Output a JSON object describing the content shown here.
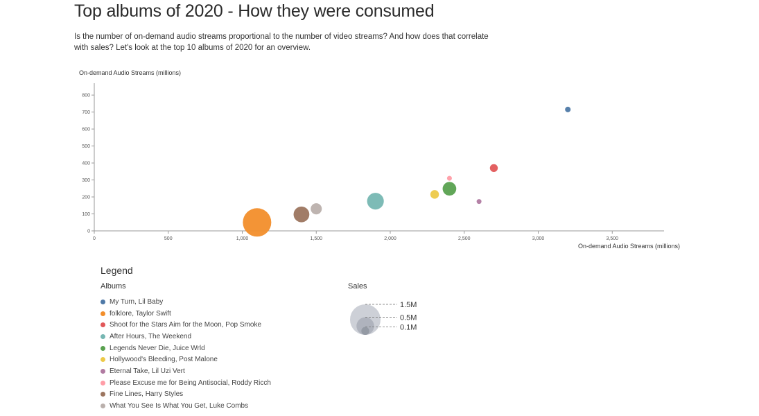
{
  "title": "Top albums of 2020 - How they were consumed",
  "subtitle": "Is the number of on-demand audio streams proportional to the number of video streams? And how does that correlate with sales? Let's look at the top 10 albums of 2020 for an overview.",
  "legend": {
    "title": "Legend",
    "albums_label": "Albums",
    "sales_label": "Sales",
    "sales_items": [
      {
        "label": "1.5M",
        "value": 1.5
      },
      {
        "label": "0.5M",
        "value": 0.5
      },
      {
        "label": "0.1M",
        "value": 0.1
      }
    ]
  },
  "chart_data": {
    "type": "scatter",
    "xlabel": "On-demand Audio Streams (millions)",
    "ylabel": "On-demand Audio Streams (millions)",
    "xlim": [
      0,
      3850
    ],
    "ylim": [
      0,
      870
    ],
    "x_ticks": [
      0,
      500,
      1000,
      1500,
      2000,
      2500,
      3000,
      3500
    ],
    "x_tick_labels": [
      "0",
      "500",
      "1,000",
      "1,500",
      "2,000",
      "2,500",
      "3,000",
      "3,500"
    ],
    "y_ticks": [
      0,
      100,
      200,
      300,
      400,
      500,
      600,
      700,
      800
    ],
    "y_tick_labels": [
      "0",
      "100",
      "200",
      "300",
      "400",
      "500",
      "600",
      "700",
      "800"
    ],
    "grid": false,
    "legend_position": "bottom-left",
    "series": [
      {
        "name": "My Turn, Lil Baby",
        "color": "#4e79a7",
        "x": 3200,
        "y": 715,
        "sales": 0.05
      },
      {
        "name": "folklore, Taylor Swift",
        "color": "#f28e2b",
        "x": 1100,
        "y": 50,
        "sales": 1.3
      },
      {
        "name": "Shoot for the Stars Aim for the Moon, Pop Smoke",
        "color": "#e15759",
        "x": 2700,
        "y": 370,
        "sales": 0.1
      },
      {
        "name": "After Hours, The Weekend",
        "color": "#76b7b2",
        "x": 1900,
        "y": 175,
        "sales": 0.45
      },
      {
        "name": "Legends Never Die, Juice Wrld",
        "color": "#59a14f",
        "x": 2400,
        "y": 248,
        "sales": 0.3
      },
      {
        "name": "Hollywood's Bleeding, Post Malone",
        "color": "#edc948",
        "x": 2300,
        "y": 215,
        "sales": 0.12
      },
      {
        "name": "Eternal Take, Lil Uzi Vert",
        "color": "#b07aa1",
        "x": 2600,
        "y": 173,
        "sales": 0.03
      },
      {
        "name": "Please Excuse me for Being Antisocial, Roddy Ricch",
        "color": "#ff9da7",
        "x": 2400,
        "y": 310,
        "sales": 0.03
      },
      {
        "name": "Fine Lines, Harry Styles",
        "color": "#9c755f",
        "x": 1400,
        "y": 97,
        "sales": 0.4
      },
      {
        "name": "What You See Is What You Get, Luke Combs",
        "color": "#bab0ac",
        "x": 1500,
        "y": 130,
        "sales": 0.2
      }
    ]
  }
}
